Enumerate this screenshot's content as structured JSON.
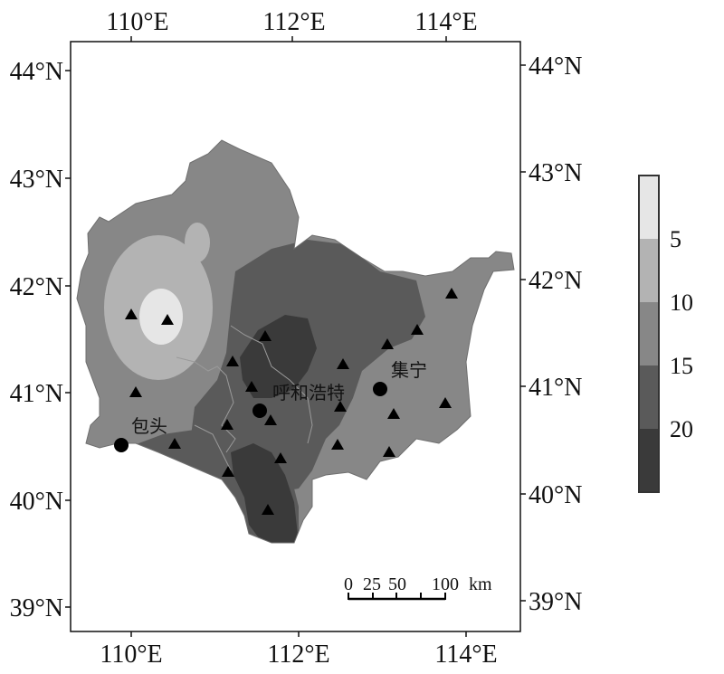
{
  "map": {
    "top_axis": [
      "110°E",
      "112°E",
      "114°E"
    ],
    "bottom_axis": [
      "110°E",
      "112°E",
      "114°E"
    ],
    "left_axis": [
      "44°N",
      "43°N",
      "42°N",
      "41°N",
      "40°N",
      "39°N"
    ],
    "right_axis": [
      "44°N",
      "43°N",
      "42°N",
      "41°N",
      "40°N",
      "39°N"
    ],
    "cities": [
      {
        "name": "包头"
      },
      {
        "name": "呼和浩特"
      },
      {
        "name": "集宁"
      }
    ],
    "scale_bar": {
      "ticks": [
        "0",
        "25",
        "50",
        "100"
      ],
      "unit": "km"
    },
    "legend": {
      "labels": [
        "5",
        "10",
        "15",
        "20"
      ],
      "colors": [
        "#e6e6e6",
        "#b3b3b3",
        "#878787",
        "#5a5a5a",
        "#3a3a3a"
      ]
    }
  }
}
